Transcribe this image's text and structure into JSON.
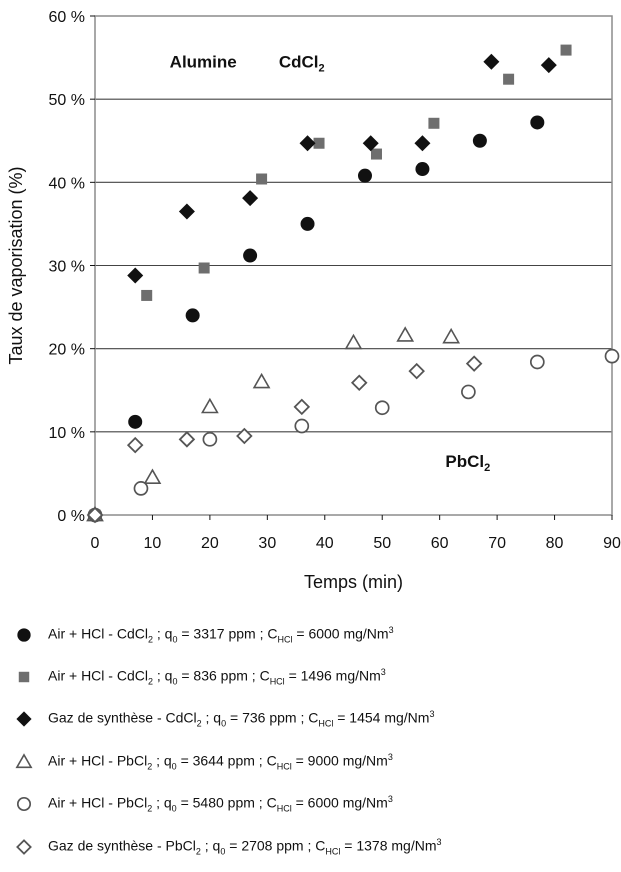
{
  "chart_data": {
    "type": "scatter",
    "xlabel": "Temps (min)",
    "ylabel": "Taux de vaporisation (%)",
    "xlim": [
      0,
      90
    ],
    "ylim": [
      0,
      60
    ],
    "x_ticks": [
      "0",
      "10",
      "20",
      "30",
      "40",
      "50",
      "60",
      "70",
      "80",
      "90"
    ],
    "y_ticks": [
      "0 %",
      "10 %",
      "20 %",
      "30 %",
      "40 %",
      "50 %",
      "60 %"
    ],
    "grid": "horizontal",
    "annotations": [
      {
        "text": "Alumine",
        "x": 13,
        "y": 54.5
      },
      {
        "text": "CdCl",
        "sub": "2",
        "x": 32,
        "y": 54.5
      },
      {
        "text": "PbCl",
        "sub": "2",
        "x": 61,
        "y": 6.5
      }
    ],
    "series": [
      {
        "name": "Air + HCl - CdCl₂ ; q₀ = 3317 ppm ; CHCl = 6000 mg/Nm³",
        "marker": "circle-filled",
        "x": [
          0,
          7,
          17,
          27,
          37,
          47,
          57,
          67,
          77
        ],
        "y": [
          0,
          11.2,
          24,
          31.2,
          35,
          40.8,
          41.6,
          45,
          47.2
        ]
      },
      {
        "name": "Air + HCl - CdCl₂ ; q₀ = 836 ppm ; CHCl = 1496 mg/Nm³",
        "marker": "square-filled",
        "x": [
          0,
          9,
          19,
          29,
          39,
          49,
          59,
          72,
          82
        ],
        "y": [
          0,
          26.4,
          29.7,
          40.4,
          44.7,
          43.4,
          47.1,
          52.4,
          55.9
        ]
      },
      {
        "name": "Gaz de synthèse - CdCl₂ ; q₀ = 736 ppm ; CHCl = 1454 mg/Nm³",
        "marker": "diamond-filled",
        "x": [
          0,
          7,
          16,
          27,
          37,
          48,
          57,
          69,
          79
        ],
        "y": [
          0,
          28.8,
          36.5,
          38.1,
          44.7,
          44.7,
          44.7,
          54.5,
          54.1
        ]
      },
      {
        "name": "Air + HCl - PbCl₂ ; q₀ = 3644 ppm ; CHCl = 9000 mg/Nm³",
        "marker": "triangle-open",
        "x": [
          0,
          10,
          20,
          29,
          45,
          54,
          62
        ],
        "y": [
          0,
          4.5,
          13,
          16,
          20.7,
          21.6,
          21.4
        ]
      },
      {
        "name": "Air + HCl - PbCl₂ ; q₀ = 5480 ppm ; CHCl = 6000 mg/Nm³",
        "marker": "circle-open",
        "x": [
          0,
          8,
          20,
          36,
          50,
          65,
          77,
          90
        ],
        "y": [
          0,
          3.2,
          9.1,
          10.7,
          12.9,
          14.8,
          18.4,
          19.1
        ]
      },
      {
        "name": "Gaz de synthèse - PbCl₂ ; q₀ = 2708 ppm ; CHCl = 1378 mg/Nm³",
        "marker": "diamond-open",
        "x": [
          0,
          7,
          16,
          26,
          36,
          46,
          56,
          66
        ],
        "y": [
          0,
          8.4,
          9.1,
          9.5,
          13,
          15.9,
          17.3,
          18.2
        ]
      }
    ]
  },
  "legend": [
    {
      "prefix": "Air + HCl - CdCl",
      "pre_sub": "2",
      "q": " ; q",
      "q_sub": "0",
      "q_val": " = 3317 ppm ; C",
      "c_sub": "HCl",
      "c_val": " = 6000 mg/Nm",
      "sup": "3"
    },
    {
      "prefix": "Air + HCl - CdCl",
      "pre_sub": "2",
      "q": " ; q",
      "q_sub": "0",
      "q_val": " = 836 ppm ; C",
      "c_sub": "HCl",
      "c_val": " = 1496 mg/Nm",
      "sup": "3"
    },
    {
      "prefix": "Gaz de synthèse - CdCl",
      "pre_sub": "2",
      "q": " ; q",
      "q_sub": "0",
      "q_val": " = 736 ppm ; C",
      "c_sub": "HCl",
      "c_val": " = 1454 mg/Nm",
      "sup": "3"
    },
    {
      "prefix": "Air + HCl - PbCl",
      "pre_sub": "2",
      "q": " ; q",
      "q_sub": "0",
      "q_val": " = 3644 ppm ; C",
      "c_sub": "HCl",
      "c_val": " = 9000 mg/Nm",
      "sup": "3"
    },
    {
      "prefix": "Air + HCl - PbCl",
      "pre_sub": "2",
      "q": " ; q",
      "q_sub": "0",
      "q_val": " = 5480 ppm ; C",
      "c_sub": "HCl",
      "c_val": " = 6000 mg/Nm",
      "sup": "3"
    },
    {
      "prefix": "Gaz de synthèse - PbCl",
      "pre_sub": "2",
      "q": " ; q",
      "q_sub": "0",
      "q_val": " = 2708 ppm ; C",
      "c_sub": "HCl",
      "c_val": " = 1378 mg/Nm",
      "sup": "3"
    }
  ],
  "colors": {
    "cd_marker": "#111111",
    "square_marker": "#6e6e6e",
    "pb_marker": "#555555",
    "grid": "#444444",
    "frame": "#8c8c8c"
  }
}
